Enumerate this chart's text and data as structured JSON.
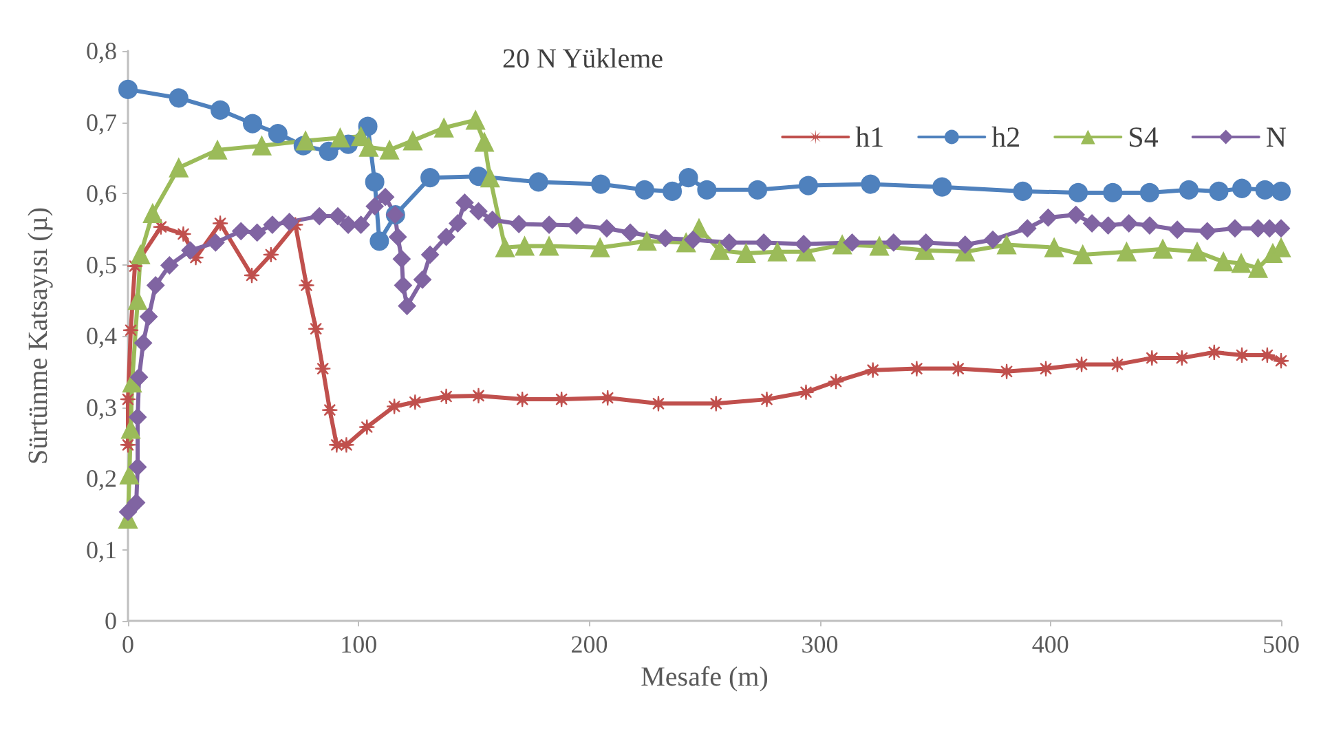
{
  "chart_data": {
    "type": "line",
    "title": "20 N Yükleme",
    "xlabel": "Mesafe (m)",
    "ylabel": "Sürtünme Katsayısı (µ)",
    "xlim": [
      0,
      500
    ],
    "xticks": [
      0,
      100,
      200,
      300,
      400,
      500
    ],
    "ylim": [
      0,
      0.8
    ],
    "yticks": [
      0,
      {
        "value": 0.1,
        "label": "0,1"
      },
      {
        "value": 0.2,
        "label": "0,2"
      },
      {
        "value": 0.3,
        "label": "0,3"
      },
      {
        "value": 0.4,
        "label": "0,4"
      },
      {
        "value": 0.5,
        "label": "0,5"
      },
      {
        "value": 0.6,
        "label": "0,6"
      },
      {
        "value": 0.7,
        "label": "0,7"
      },
      {
        "value": 0.8,
        "label": "0,8"
      }
    ],
    "grid": false,
    "legend": "top right",
    "line_style": "solid",
    "series": [
      {
        "name": "h1",
        "color": "#c0504d",
        "marker": "cross",
        "x": [
          0,
          0,
          1.2,
          3,
          14.3,
          24,
          29.4,
          40,
          53.7,
          62,
          72.6,
          77.4,
          81.5,
          84.5,
          87.5,
          90.5,
          94.7,
          103.6,
          115.5,
          124.5,
          138,
          152,
          171,
          188,
          208,
          230,
          255,
          277,
          294,
          307,
          323,
          342,
          360,
          381,
          398,
          413.5,
          429,
          444,
          457,
          471,
          483,
          494,
          500
        ],
        "values": [
          0.247,
          0.311,
          0.408,
          0.498,
          0.553,
          0.543,
          0.51,
          0.558,
          0.485,
          0.514,
          0.556,
          0.471,
          0.41,
          0.354,
          0.296,
          0.247,
          0.247,
          0.272,
          0.301,
          0.307,
          0.315,
          0.316,
          0.311,
          0.311,
          0.313,
          0.305,
          0.305,
          0.311,
          0.321,
          0.336,
          0.352,
          0.354,
          0.354,
          0.35,
          0.354,
          0.36,
          0.36,
          0.369,
          0.369,
          0.377,
          0.373,
          0.373,
          0.365
        ]
      },
      {
        "name": "h2",
        "color": "#4f81bd",
        "marker": "circle",
        "x": [
          0,
          22,
          40,
          54,
          65,
          76,
          87,
          95.5,
          104,
          107,
          109,
          116,
          131,
          152,
          178,
          205,
          224,
          236,
          243,
          251,
          273,
          295,
          322,
          353,
          388,
          412,
          427,
          443,
          460,
          473,
          483,
          493,
          500
        ],
        "values": [
          0.746,
          0.734,
          0.717,
          0.698,
          0.684,
          0.667,
          0.659,
          0.669,
          0.694,
          0.616,
          0.533,
          0.57,
          0.622,
          0.624,
          0.616,
          0.613,
          0.605,
          0.603,
          0.622,
          0.605,
          0.605,
          0.611,
          0.613,
          0.609,
          0.603,
          0.601,
          0.601,
          0.601,
          0.605,
          0.603,
          0.607,
          0.605,
          0.603
        ]
      },
      {
        "name": "S4",
        "color": "#9bbb59",
        "marker": "triangle",
        "x": [
          0,
          0.6,
          1.2,
          1.8,
          4.2,
          5.4,
          10.7,
          22,
          38.8,
          58,
          77,
          92,
          101,
          104.4,
          113.4,
          123.5,
          137,
          150.7,
          154.5,
          157,
          163.5,
          172,
          182.6,
          204.7,
          225,
          242,
          247.6,
          256.6,
          268,
          281.6,
          294,
          309.7,
          325.8,
          345.5,
          363,
          381,
          401.6,
          414,
          433,
          448.7,
          463.6,
          475,
          482.7,
          490,
          496.4,
          500
        ],
        "values": [
          0.143,
          0.205,
          0.269,
          0.334,
          0.45,
          0.514,
          0.572,
          0.636,
          0.661,
          0.667,
          0.674,
          0.678,
          0.68,
          0.665,
          0.661,
          0.674,
          0.692,
          0.703,
          0.672,
          0.622,
          0.524,
          0.526,
          0.526,
          0.524,
          0.533,
          0.531,
          0.551,
          0.52,
          0.516,
          0.518,
          0.518,
          0.528,
          0.526,
          0.52,
          0.518,
          0.528,
          0.524,
          0.514,
          0.518,
          0.522,
          0.518,
          0.504,
          0.502,
          0.495,
          0.516,
          0.524
        ]
      },
      {
        "name": "N",
        "color": "#8064a2",
        "marker": "diamond",
        "x": [
          0,
          3.6,
          4.2,
          4.2,
          4.8,
          6.6,
          9,
          12,
          18,
          27,
          38,
          49,
          56,
          62.6,
          70,
          83,
          91,
          95.5,
          101,
          107,
          111.6,
          115.8,
          117,
          118.7,
          119.3,
          121,
          127.7,
          131,
          138,
          143,
          146,
          152,
          158,
          169.5,
          182.6,
          194.5,
          207.6,
          217.8,
          233,
          245,
          260.7,
          275.7,
          293,
          314,
          332,
          346,
          363,
          375,
          390,
          399,
          411,
          418,
          425,
          434,
          443,
          455,
          468,
          480,
          490,
          495,
          500
        ],
        "values": [
          0.153,
          0.166,
          0.216,
          0.286,
          0.342,
          0.39,
          0.427,
          0.471,
          0.499,
          0.52,
          0.531,
          0.547,
          0.545,
          0.556,
          0.56,
          0.568,
          0.568,
          0.556,
          0.556,
          0.582,
          0.595,
          0.57,
          0.539,
          0.508,
          0.471,
          0.442,
          0.479,
          0.514,
          0.539,
          0.558,
          0.587,
          0.575,
          0.563,
          0.557,
          0.556,
          0.555,
          0.551,
          0.545,
          0.537,
          0.535,
          0.531,
          0.531,
          0.529,
          0.531,
          0.531,
          0.531,
          0.528,
          0.535,
          0.551,
          0.566,
          0.57,
          0.558,
          0.555,
          0.558,
          0.555,
          0.549,
          0.547,
          0.551,
          0.551,
          0.551,
          0.551
        ]
      }
    ]
  }
}
